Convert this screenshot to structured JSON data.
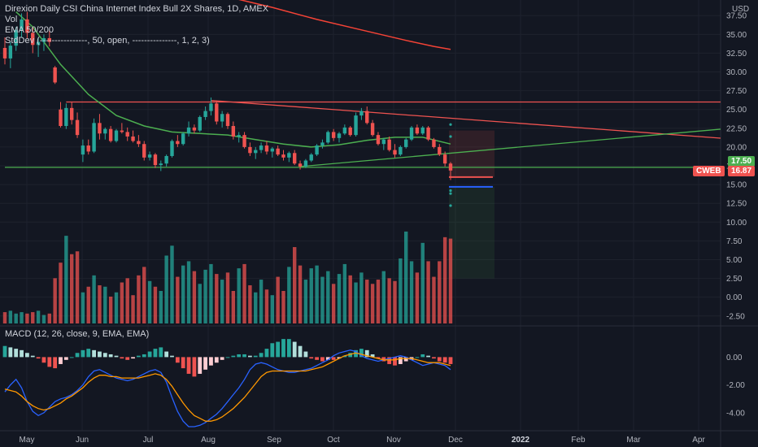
{
  "header": {
    "title": "Direxion Daily CSI China Internet Index Bull 2X Shares, 1D, AMEX",
    "vol": "Vol",
    "ema": "EMA 50/200",
    "stddev": "StdDev (----------------, 50, open, ---------------, 1, 2, 3)",
    "macd": "MACD (12, 26, close, 9, EMA, EMA)"
  },
  "currency": "USD",
  "badges": {
    "green_price": "17.50",
    "ticker": "CWEB",
    "red_price": "16.87"
  },
  "colors": {
    "background": "#131722",
    "up": "#26a69a",
    "down": "#ef5350",
    "ema50": "#4caf50",
    "ema200": "#f44336",
    "macd_line": "#2962ff",
    "signal_line": "#ff9800",
    "trendline_red": "#ef5350",
    "trendline_green": "#4caf50"
  },
  "chart_data": [
    {
      "type": "candlestick",
      "title": "Direxion Daily CSI China Internet Index Bull 2X Shares, 1D, AMEX",
      "y_ticks": [
        "37.50",
        "35.00",
        "32.50",
        "30.00",
        "27.50",
        "25.00",
        "22.50",
        "20.00",
        "17.50",
        "15.00",
        "12.50",
        "10.00",
        "7.50",
        "5.00",
        "2.50",
        "0.00",
        "-2.50"
      ],
      "x_ticks": [
        "May",
        "Jun",
        "Jul",
        "Aug",
        "Sep",
        "Oct",
        "Nov",
        "Dec",
        "2022",
        "Feb",
        "Mar",
        "Apr"
      ],
      "ylim": [
        -3.5,
        38.5
      ],
      "last_price": 16.87,
      "candles": [
        {
          "i": 0,
          "o": 33.2,
          "h": 34.6,
          "l": 31.0,
          "c": 31.8
        },
        {
          "i": 1,
          "o": 31.8,
          "h": 34.0,
          "l": 30.5,
          "c": 33.5
        },
        {
          "i": 2,
          "o": 33.5,
          "h": 36.0,
          "l": 32.8,
          "c": 35.6
        },
        {
          "i": 3,
          "o": 35.6,
          "h": 37.8,
          "l": 34.6,
          "c": 37.0
        },
        {
          "i": 4,
          "o": 37.0,
          "h": 38.0,
          "l": 34.5,
          "c": 35.2
        },
        {
          "i": 5,
          "o": 35.2,
          "h": 36.0,
          "l": 32.5,
          "c": 33.6
        },
        {
          "i": 6,
          "o": 33.6,
          "h": 34.6,
          "l": 32.0,
          "c": 34.0
        },
        {
          "i": 7,
          "o": 34.0,
          "h": 35.0,
          "l": 32.8,
          "c": 34.5
        },
        {
          "i": 8,
          "o": 34.5,
          "h": 35.5,
          "l": 33.4,
          "c": 34.0
        },
        {
          "i": 9,
          "o": 30.6,
          "h": 30.8,
          "l": 28.4,
          "c": 28.6
        },
        {
          "i": 10,
          "o": 25.0,
          "h": 26.0,
          "l": 22.6,
          "c": 22.8
        },
        {
          "i": 11,
          "o": 22.8,
          "h": 25.8,
          "l": 22.4,
          "c": 25.2
        },
        {
          "i": 12,
          "o": 25.2,
          "h": 26.0,
          "l": 23.0,
          "c": 23.6
        },
        {
          "i": 13,
          "o": 23.6,
          "h": 24.6,
          "l": 21.2,
          "c": 21.6
        },
        {
          "i": 14,
          "o": 19.0,
          "h": 21.0,
          "l": 18.0,
          "c": 20.2
        },
        {
          "i": 15,
          "o": 20.2,
          "h": 21.0,
          "l": 19.0,
          "c": 19.4
        },
        {
          "i": 16,
          "o": 19.4,
          "h": 23.8,
          "l": 19.2,
          "c": 23.2
        },
        {
          "i": 17,
          "o": 23.2,
          "h": 24.4,
          "l": 21.0,
          "c": 21.8
        },
        {
          "i": 18,
          "o": 21.8,
          "h": 22.6,
          "l": 21.0,
          "c": 22.4
        },
        {
          "i": 19,
          "o": 22.4,
          "h": 22.8,
          "l": 20.6,
          "c": 20.8
        },
        {
          "i": 20,
          "o": 20.8,
          "h": 22.4,
          "l": 20.6,
          "c": 22.2
        },
        {
          "i": 21,
          "o": 22.2,
          "h": 23.2,
          "l": 21.8,
          "c": 22.0
        },
        {
          "i": 22,
          "o": 22.0,
          "h": 22.6,
          "l": 20.8,
          "c": 21.4
        },
        {
          "i": 23,
          "o": 21.4,
          "h": 22.2,
          "l": 20.6,
          "c": 20.8
        },
        {
          "i": 24,
          "o": 20.8,
          "h": 21.6,
          "l": 20.0,
          "c": 20.4
        },
        {
          "i": 25,
          "o": 20.4,
          "h": 20.8,
          "l": 18.2,
          "c": 18.6
        },
        {
          "i": 26,
          "o": 18.6,
          "h": 19.4,
          "l": 18.2,
          "c": 19.0
        },
        {
          "i": 27,
          "o": 19.0,
          "h": 19.2,
          "l": 17.2,
          "c": 17.6
        },
        {
          "i": 28,
          "o": 17.6,
          "h": 18.2,
          "l": 16.8,
          "c": 17.8
        },
        {
          "i": 29,
          "o": 17.8,
          "h": 19.0,
          "l": 17.4,
          "c": 18.8
        },
        {
          "i": 30,
          "o": 18.8,
          "h": 21.0,
          "l": 18.6,
          "c": 20.8
        },
        {
          "i": 31,
          "o": 20.8,
          "h": 21.6,
          "l": 20.0,
          "c": 20.4
        },
        {
          "i": 32,
          "o": 20.4,
          "h": 22.0,
          "l": 20.2,
          "c": 21.8
        },
        {
          "i": 33,
          "o": 21.8,
          "h": 23.4,
          "l": 21.4,
          "c": 22.6
        },
        {
          "i": 34,
          "o": 22.6,
          "h": 23.0,
          "l": 21.8,
          "c": 22.2
        },
        {
          "i": 35,
          "o": 22.2,
          "h": 24.2,
          "l": 22.0,
          "c": 24.0
        },
        {
          "i": 36,
          "o": 24.0,
          "h": 25.4,
          "l": 23.6,
          "c": 24.8
        },
        {
          "i": 37,
          "o": 24.8,
          "h": 26.6,
          "l": 24.2,
          "c": 25.8
        },
        {
          "i": 38,
          "o": 25.8,
          "h": 26.2,
          "l": 23.0,
          "c": 23.4
        },
        {
          "i": 39,
          "o": 23.4,
          "h": 24.8,
          "l": 22.6,
          "c": 24.4
        },
        {
          "i": 40,
          "o": 24.4,
          "h": 24.6,
          "l": 22.4,
          "c": 22.8
        },
        {
          "i": 41,
          "o": 22.8,
          "h": 23.4,
          "l": 21.0,
          "c": 21.4
        },
        {
          "i": 42,
          "o": 21.4,
          "h": 22.0,
          "l": 20.6,
          "c": 21.6
        },
        {
          "i": 43,
          "o": 21.6,
          "h": 22.0,
          "l": 19.8,
          "c": 20.0
        },
        {
          "i": 44,
          "o": 20.0,
          "h": 20.6,
          "l": 18.8,
          "c": 19.2
        },
        {
          "i": 45,
          "o": 19.2,
          "h": 20.0,
          "l": 18.4,
          "c": 19.6
        },
        {
          "i": 46,
          "o": 19.6,
          "h": 20.6,
          "l": 19.2,
          "c": 20.2
        },
        {
          "i": 47,
          "o": 20.2,
          "h": 20.8,
          "l": 19.0,
          "c": 19.4
        },
        {
          "i": 48,
          "o": 19.4,
          "h": 20.0,
          "l": 18.6,
          "c": 19.8
        },
        {
          "i": 49,
          "o": 19.8,
          "h": 20.2,
          "l": 18.8,
          "c": 19.0
        },
        {
          "i": 50,
          "o": 19.0,
          "h": 19.6,
          "l": 18.2,
          "c": 18.6
        },
        {
          "i": 51,
          "o": 18.6,
          "h": 19.4,
          "l": 18.0,
          "c": 19.2
        },
        {
          "i": 52,
          "o": 19.2,
          "h": 19.6,
          "l": 17.6,
          "c": 17.8
        },
        {
          "i": 53,
          "o": 17.8,
          "h": 18.2,
          "l": 17.0,
          "c": 17.4
        },
        {
          "i": 54,
          "o": 17.4,
          "h": 18.4,
          "l": 17.2,
          "c": 18.2
        },
        {
          "i": 55,
          "o": 18.2,
          "h": 19.2,
          "l": 18.0,
          "c": 19.0
        },
        {
          "i": 56,
          "o": 19.0,
          "h": 20.4,
          "l": 18.8,
          "c": 20.2
        },
        {
          "i": 57,
          "o": 20.2,
          "h": 21.0,
          "l": 19.8,
          "c": 20.6
        },
        {
          "i": 58,
          "o": 20.6,
          "h": 22.2,
          "l": 20.4,
          "c": 22.0
        },
        {
          "i": 59,
          "o": 22.0,
          "h": 22.4,
          "l": 20.8,
          "c": 21.2
        },
        {
          "i": 60,
          "o": 21.2,
          "h": 22.0,
          "l": 20.6,
          "c": 21.8
        },
        {
          "i": 61,
          "o": 21.8,
          "h": 23.0,
          "l": 21.6,
          "c": 22.6
        },
        {
          "i": 62,
          "o": 22.6,
          "h": 22.8,
          "l": 21.4,
          "c": 21.6
        },
        {
          "i": 63,
          "o": 21.6,
          "h": 24.6,
          "l": 21.4,
          "c": 24.2
        },
        {
          "i": 64,
          "o": 24.2,
          "h": 25.2,
          "l": 23.6,
          "c": 24.8
        },
        {
          "i": 65,
          "o": 24.8,
          "h": 25.4,
          "l": 23.0,
          "c": 23.2
        },
        {
          "i": 66,
          "o": 23.2,
          "h": 23.6,
          "l": 21.4,
          "c": 21.6
        },
        {
          "i": 67,
          "o": 21.6,
          "h": 22.0,
          "l": 20.2,
          "c": 20.4
        },
        {
          "i": 68,
          "o": 20.4,
          "h": 21.2,
          "l": 19.6,
          "c": 21.0
        },
        {
          "i": 69,
          "o": 21.0,
          "h": 21.4,
          "l": 19.4,
          "c": 19.6
        },
        {
          "i": 70,
          "o": 19.6,
          "h": 20.4,
          "l": 18.6,
          "c": 19.0
        },
        {
          "i": 71,
          "o": 19.0,
          "h": 20.2,
          "l": 18.8,
          "c": 20.0
        },
        {
          "i": 72,
          "o": 20.0,
          "h": 21.2,
          "l": 19.8,
          "c": 21.0
        },
        {
          "i": 73,
          "o": 21.0,
          "h": 22.8,
          "l": 20.8,
          "c": 22.6
        },
        {
          "i": 74,
          "o": 22.6,
          "h": 23.0,
          "l": 21.6,
          "c": 21.8
        },
        {
          "i": 75,
          "o": 21.8,
          "h": 22.8,
          "l": 21.6,
          "c": 22.6
        },
        {
          "i": 76,
          "o": 22.6,
          "h": 22.8,
          "l": 20.8,
          "c": 21.0
        },
        {
          "i": 77,
          "o": 21.0,
          "h": 21.2,
          "l": 19.8,
          "c": 20.0
        },
        {
          "i": 78,
          "o": 20.0,
          "h": 20.4,
          "l": 18.8,
          "c": 19.0
        },
        {
          "i": 79,
          "o": 19.0,
          "h": 19.4,
          "l": 17.4,
          "c": 17.8
        },
        {
          "i": 80,
          "o": 17.8,
          "h": 18.0,
          "l": 15.6,
          "c": 16.87
        }
      ],
      "volume": [
        0.8,
        0.9,
        0.7,
        0.8,
        0.7,
        0.8,
        0.9,
        0.6,
        0.7,
        3.2,
        4.3,
        6.2,
        4.9,
        5.1,
        2.2,
        2.6,
        3.4,
        2.7,
        2.6,
        1.9,
        2.2,
        2.9,
        3.2,
        2.0,
        3.4,
        4.0,
        3.0,
        2.6,
        2.3,
        4.8,
        5.5,
        3.3,
        4.1,
        4.4,
        3.7,
        2.8,
        3.8,
        4.2,
        3.5,
        3.1,
        3.6,
        2.3,
        3.9,
        4.2,
        2.7,
        2.2,
        3.1,
        2.4,
        2.0,
        3.3,
        2.3,
        4.0,
        5.4,
        4.1,
        3.1,
        3.9,
        4.1,
        3.3,
        3.7,
        2.8,
        3.5,
        4.2,
        3.4,
        2.9,
        3.6,
        3.1,
        2.8,
        3.1,
        3.7,
        3.2,
        3.0,
        4.6,
        6.5,
        4.4,
        3.6,
        5.7,
        4.4,
        3.3,
        4.4,
        6.1,
        6.0
      ],
      "ema50": [
        [
          2,
          38.0
        ],
        [
          5,
          36.0
        ],
        [
          10,
          31.0
        ],
        [
          15,
          27.0
        ],
        [
          20,
          24.2
        ],
        [
          25,
          22.8
        ],
        [
          30,
          22.0
        ],
        [
          35,
          21.8
        ],
        [
          40,
          21.6
        ],
        [
          45,
          21.0
        ],
        [
          50,
          20.4
        ],
        [
          55,
          20.0
        ],
        [
          60,
          20.3
        ],
        [
          65,
          20.9
        ],
        [
          70,
          21.3
        ],
        [
          75,
          21.3
        ],
        [
          80,
          20.4
        ]
      ],
      "ema200": [
        [
          40,
          40.0
        ],
        [
          48,
          38.6
        ],
        [
          56,
          37.0
        ],
        [
          64,
          35.6
        ],
        [
          72,
          34.2
        ],
        [
          77,
          33.4
        ],
        [
          80,
          33.0
        ]
      ],
      "trendlines": [
        {
          "color": "red",
          "points": [
            [
              11,
              26.0
            ],
            [
              150,
              26.0
            ]
          ]
        },
        {
          "color": "red",
          "points": [
            [
              37,
              26.2
            ],
            [
              150,
              20.0
            ]
          ]
        },
        {
          "color": "green",
          "points": [
            [
              0,
              17.3
            ],
            [
              150,
              17.3
            ]
          ]
        },
        {
          "color": "green",
          "points": [
            [
              53,
              17.4
            ],
            [
              150,
              23.8
            ]
          ]
        }
      ],
      "levels": {
        "stop": 16.0,
        "entry": 14.7,
        "target_top": 22.2,
        "target_bottom": 2.5
      },
      "stddev_dots": [
        [
          80,
          21.4
        ],
        [
          80,
          23.0
        ],
        [
          80,
          14.2
        ],
        [
          80,
          13.8
        ],
        [
          80,
          12.2
        ]
      ]
    },
    {
      "type": "macd",
      "title": "MACD (12, 26, close, 9, EMA, EMA)",
      "y_ticks": [
        "0.00",
        "-2.00",
        "-4.00"
      ],
      "ylim": [
        -5.0,
        1.6
      ],
      "histogram": [
        0.8,
        0.7,
        0.6,
        0.5,
        0.3,
        0.1,
        -0.1,
        -0.4,
        -0.7,
        -0.8,
        -0.5,
        -0.2,
        0.0,
        0.3,
        0.5,
        0.6,
        0.5,
        0.4,
        0.3,
        0.2,
        0.1,
        -0.1,
        -0.2,
        -0.1,
        0.1,
        0.2,
        0.4,
        0.6,
        0.7,
        0.4,
        0.1,
        -0.4,
        -0.8,
        -1.2,
        -1.4,
        -1.2,
        -0.9,
        -0.6,
        -0.4,
        -0.2,
        0.0,
        0.1,
        0.2,
        0.2,
        0.1,
        0.1,
        0.3,
        0.6,
        1.0,
        1.1,
        1.3,
        1.3,
        1.1,
        0.8,
        0.4,
        -0.1,
        -0.2,
        -0.3,
        -0.2,
        -0.2,
        -0.1,
        0.1,
        0.3,
        0.5,
        0.6,
        0.5,
        0.2,
        -0.1,
        -0.3,
        -0.5,
        -0.6,
        -0.5,
        -0.3,
        -0.2,
        0.0,
        0.2,
        0.1,
        -0.1,
        -0.3,
        -0.4,
        -0.5
      ],
      "macd_line": [
        -2.5,
        -2.0,
        -1.6,
        -2.2,
        -3.2,
        -3.9,
        -4.2,
        -4.0,
        -3.6,
        -3.2,
        -3.0,
        -2.9,
        -2.7,
        -2.4,
        -2.0,
        -1.4,
        -1.0,
        -0.9,
        -1.1,
        -1.3,
        -1.5,
        -1.6,
        -1.7,
        -1.6,
        -1.4,
        -1.2,
        -1.0,
        -0.9,
        -1.1,
        -1.8,
        -2.9,
        -3.9,
        -4.6,
        -5.0,
        -5.0,
        -4.9,
        -4.7,
        -4.4,
        -4.1,
        -3.7,
        -3.2,
        -2.7,
        -2.2,
        -1.6,
        -0.9,
        -0.5,
        -0.4,
        -0.5,
        -0.7,
        -0.9,
        -1.0,
        -1.1,
        -1.1,
        -1.0,
        -0.9,
        -0.8,
        -0.6,
        -0.4,
        -0.2,
        0.1,
        0.3,
        0.4,
        0.5,
        0.4,
        0.1,
        -0.1,
        -0.2,
        -0.3,
        -0.2,
        -0.1,
        0.0,
        0.1,
        0.0,
        -0.2,
        -0.4,
        -0.6,
        -0.5,
        -0.4,
        -0.5,
        -0.6,
        -0.9
      ],
      "signal_line": [
        -2.3,
        -2.4,
        -2.5,
        -2.8,
        -3.2,
        -3.5,
        -3.7,
        -3.8,
        -3.7,
        -3.5,
        -3.3,
        -3.0,
        -2.8,
        -2.5,
        -2.2,
        -1.8,
        -1.5,
        -1.3,
        -1.3,
        -1.4,
        -1.4,
        -1.5,
        -1.5,
        -1.5,
        -1.5,
        -1.4,
        -1.3,
        -1.2,
        -1.3,
        -1.6,
        -2.1,
        -2.7,
        -3.3,
        -3.8,
        -4.2,
        -4.4,
        -4.6,
        -4.6,
        -4.5,
        -4.3,
        -4.0,
        -3.7,
        -3.3,
        -2.9,
        -2.4,
        -1.9,
        -1.4,
        -1.1,
        -1.0,
        -1.0,
        -1.0,
        -1.0,
        -1.0,
        -1.0,
        -1.0,
        -0.9,
        -0.8,
        -0.7,
        -0.5,
        -0.3,
        -0.1,
        0.1,
        0.2,
        0.3,
        0.2,
        0.1,
        0.0,
        -0.1,
        -0.2,
        -0.2,
        -0.2,
        -0.1,
        -0.1,
        -0.1,
        -0.2,
        -0.3,
        -0.4,
        -0.4,
        -0.4,
        -0.5,
        -0.6
      ]
    }
  ]
}
